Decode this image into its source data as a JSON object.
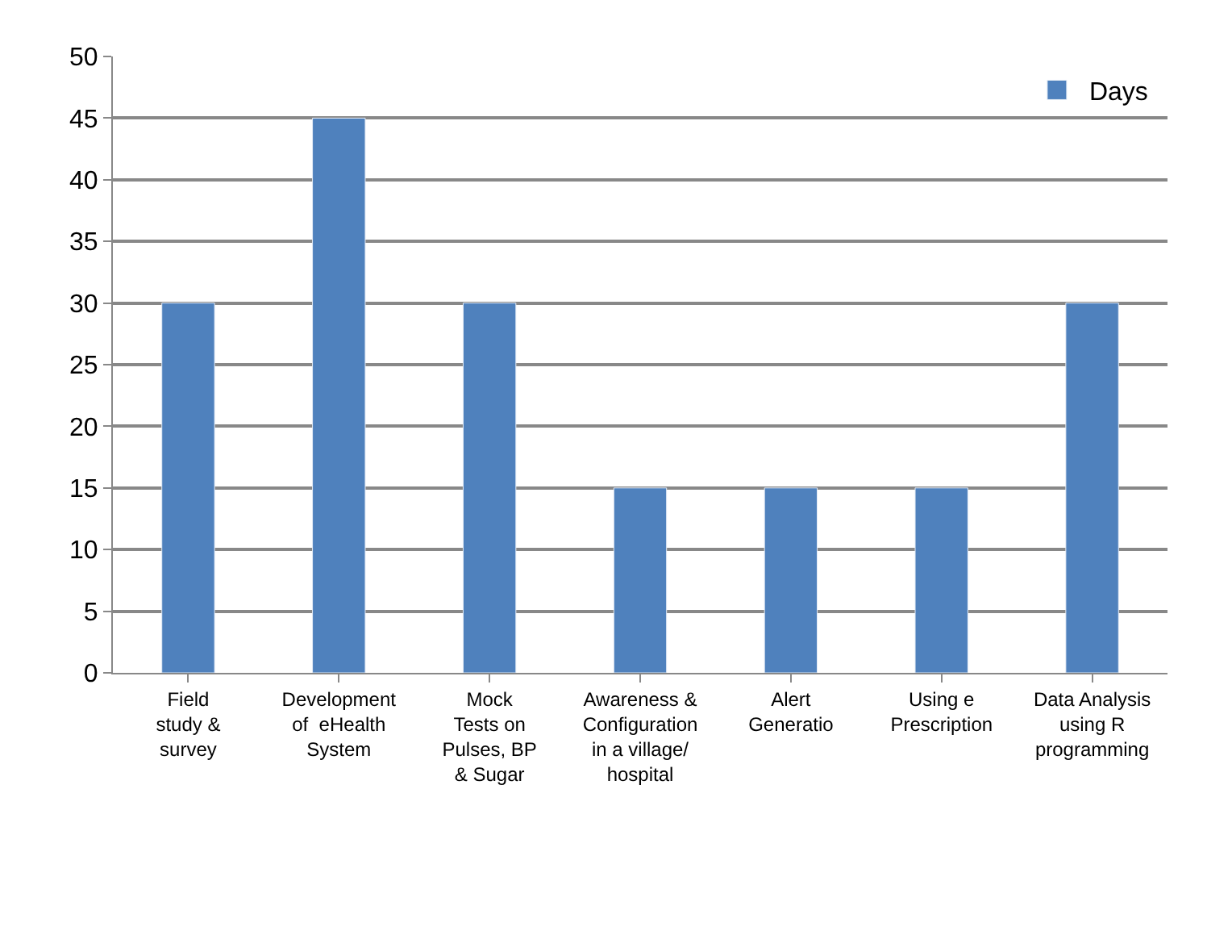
{
  "chart_data": {
    "type": "bar",
    "categories": [
      "Field\nstudy &\nsurvey",
      "Development\nof  eHealth\nSystem",
      "Mock\nTests on\nPulses, BP\n& Sugar",
      "Awareness &\nConfiguration\nin a village/\nhospital",
      "Alert\nGeneratio",
      "Using e\nPrescription",
      "Data Analysis\nusing R\nprogramming"
    ],
    "series": [
      {
        "name": "Days",
        "color": "#4f81bd",
        "values": [
          30,
          45,
          30,
          15,
          15,
          15,
          30
        ]
      }
    ],
    "ylim": [
      0,
      50
    ],
    "yticks": [
      0,
      5,
      10,
      15,
      20,
      25,
      30,
      35,
      40,
      45,
      50
    ],
    "grid": "y",
    "legend": "top right"
  }
}
